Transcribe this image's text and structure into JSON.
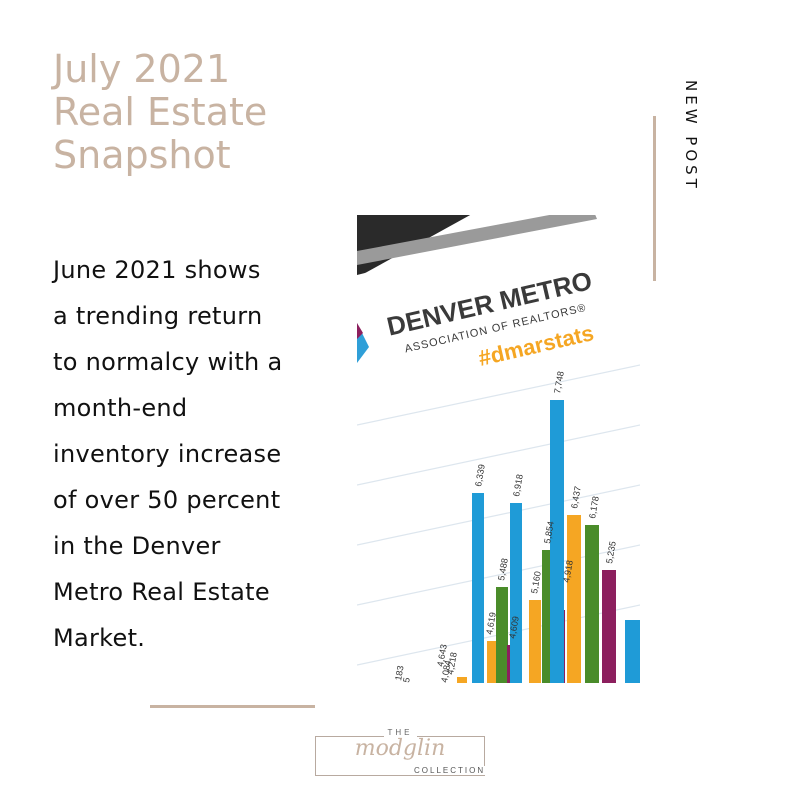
{
  "headline": {
    "lines": [
      "July 2021",
      "Real Estate",
      "Snapshot"
    ]
  },
  "side_label": "NEW POST",
  "body_lines": [
    "June 2021 shows",
    "a trending return",
    "to normalcy with a",
    "month-end",
    "inventory increase",
    "of over 50 percent",
    "in the Denver",
    "Metro Real Estate",
    "Market."
  ],
  "photo": {
    "brand_line1": "DENVER METRO",
    "brand_line2": "ASSOCIATION OF REALTORS®",
    "hashtag": "#dmarstats",
    "bar_labels": [
      "6,339",
      "5,488",
      "4,619",
      "6,918",
      "5,854",
      "5,160",
      "4,609",
      "7,748",
      "6,437",
      "6,178",
      "4,918",
      "5,235",
      "4,643",
      "4,218",
      "4,084",
      "183",
      "5"
    ]
  },
  "logo": {
    "the": "THE",
    "name": "modglin",
    "collection": "COLLECTION"
  },
  "colors": {
    "accent_tan": "#c8b3a2",
    "text_dark": "#111111",
    "bar_blue": "#1f9bd7",
    "bar_orange": "#f5a623",
    "bar_green": "#4a8c2a",
    "bar_purple": "#8c1f5e"
  }
}
